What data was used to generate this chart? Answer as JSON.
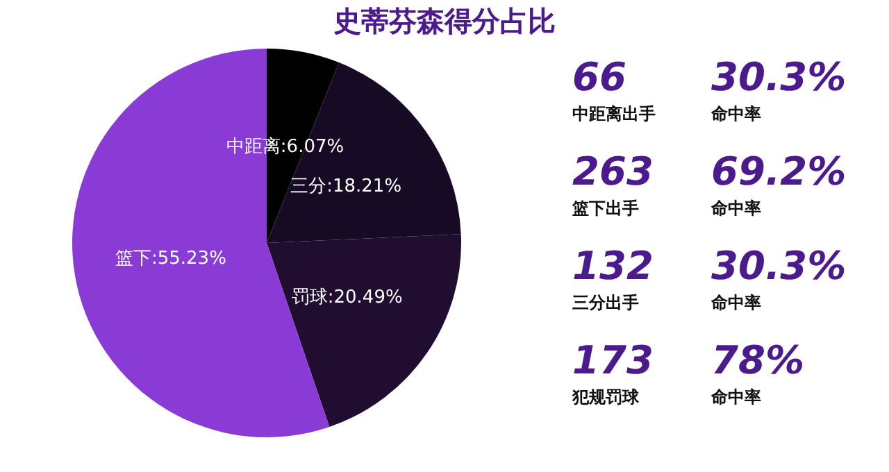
{
  "chart_data": [
    {
      "type": "pie",
      "title": "史蒂芬森得分占比",
      "categories": [
        "中距离",
        "三分",
        "罚球",
        "篮下"
      ],
      "values": [
        6.07,
        18.21,
        20.49,
        55.23
      ],
      "colors": [
        "#000000",
        "#160a24",
        "#200d30",
        "#8a3bd6"
      ],
      "value_labels": [
        "6.07%",
        "18.21%",
        "20.49%",
        "55.23%"
      ],
      "legend": false
    },
    {
      "type": "other",
      "annotations": [
        "66",
        "30.3%",
        "中距离出手",
        "命中率",
        "263",
        "69.2%",
        "篮下出手",
        "命中率",
        "132",
        "30.3%",
        "三分出手",
        "命中率",
        "173",
        "78%",
        "犯规罚球",
        "命中率"
      ]
    }
  ]
}
